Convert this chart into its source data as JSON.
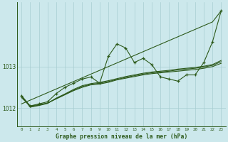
{
  "title": "Graphe pression niveau de la mer (hPa)",
  "bg_color": "#cce8ec",
  "grid_color": "#a8cdd1",
  "line_color": "#2d5a1b",
  "x_ticks": [
    0,
    1,
    2,
    3,
    4,
    5,
    6,
    7,
    8,
    9,
    10,
    11,
    12,
    13,
    14,
    15,
    16,
    17,
    18,
    19,
    20,
    21,
    22,
    23
  ],
  "y_ticks": [
    1012,
    1013
  ],
  "ylim": [
    1011.55,
    1014.55
  ],
  "xlim": [
    -0.5,
    23.5
  ],
  "series": {
    "main": [
      1012.3,
      1012.05,
      1012.1,
      1012.15,
      1012.35,
      1012.5,
      1012.6,
      1012.7,
      1012.75,
      1012.6,
      1013.25,
      1013.55,
      1013.45,
      1013.1,
      1013.2,
      1013.05,
      1012.75,
      1012.7,
      1012.65,
      1012.8,
      1012.8,
      1013.1,
      1013.6,
      1014.35
    ],
    "linear": [
      1012.1,
      1012.19,
      1012.28,
      1012.37,
      1012.46,
      1012.55,
      1012.64,
      1012.73,
      1012.82,
      1012.91,
      1013.0,
      1013.09,
      1013.18,
      1013.27,
      1013.36,
      1013.45,
      1013.54,
      1013.63,
      1013.72,
      1013.81,
      1013.9,
      1013.99,
      1014.08,
      1014.35
    ],
    "smooth1": [
      1012.25,
      1012.05,
      1012.08,
      1012.12,
      1012.22,
      1012.32,
      1012.42,
      1012.5,
      1012.56,
      1012.58,
      1012.62,
      1012.68,
      1012.72,
      1012.76,
      1012.8,
      1012.83,
      1012.85,
      1012.87,
      1012.89,
      1012.91,
      1012.93,
      1012.96,
      1013.0,
      1013.08
    ],
    "smooth2": [
      1012.28,
      1012.03,
      1012.07,
      1012.12,
      1012.23,
      1012.33,
      1012.43,
      1012.52,
      1012.57,
      1012.6,
      1012.64,
      1012.69,
      1012.74,
      1012.78,
      1012.82,
      1012.85,
      1012.87,
      1012.89,
      1012.92,
      1012.94,
      1012.96,
      1012.99,
      1013.03,
      1013.12
    ],
    "smooth3": [
      1012.3,
      1012.02,
      1012.06,
      1012.11,
      1012.24,
      1012.34,
      1012.45,
      1012.54,
      1012.59,
      1012.62,
      1012.66,
      1012.71,
      1012.76,
      1012.8,
      1012.84,
      1012.87,
      1012.89,
      1012.91,
      1012.94,
      1012.96,
      1012.98,
      1013.01,
      1013.05,
      1013.15
    ]
  }
}
